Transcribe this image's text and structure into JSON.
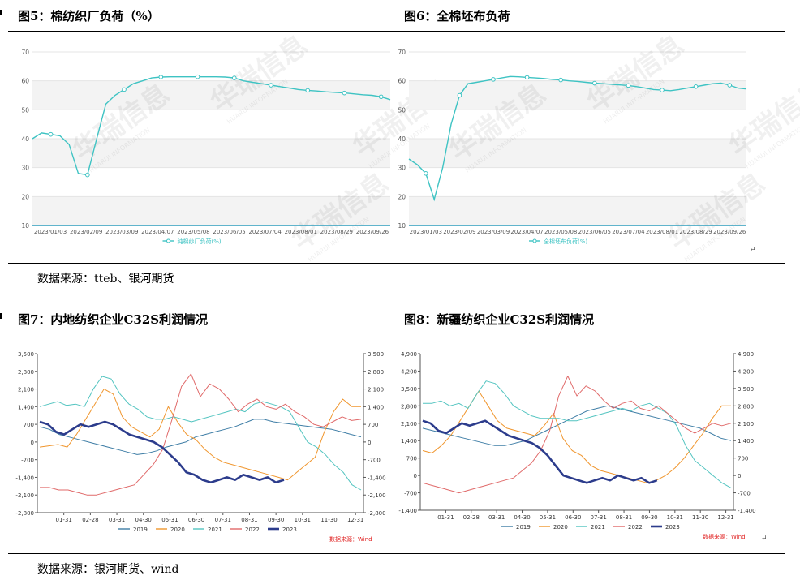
{
  "figures": [
    {
      "title": "图5：棉纺织厂负荷（%）"
    },
    {
      "title": "图6：全棉坯布负荷"
    },
    {
      "title": "图7：内地纺织企业C32S利润情况"
    },
    {
      "title": "图8：新疆纺织企业C32S利润情况"
    }
  ],
  "sources": {
    "top": "数据来源：tteb、银河期货",
    "bottom": "数据来源：银河期货、wind"
  },
  "colors": {
    "teal": "#3ec3c3",
    "blue": "#3f7ea6",
    "orange": "#f0962e",
    "cyan": "#52c4c0",
    "red": "#e06a6a",
    "navy": "#2c3c8c",
    "wind_red": "#e02020"
  },
  "chart_data": [
    {
      "type": "line",
      "title": "",
      "legend": "top",
      "y_ticks": [
        "70",
        "60",
        "50",
        "40",
        "30",
        "20",
        "10"
      ],
      "ylim": [
        10,
        70
      ],
      "x_ticks": [
        "2023/01/03",
        "2023/02/09",
        "2023/03/09",
        "2023/04/07",
        "2023/05/08",
        "2023/06/05",
        "2023/07/04",
        "2023/08/01",
        "2023/08/29",
        "2023/09/26"
      ],
      "series": [
        {
          "name": "纯棉纱厂负荷(%)",
          "values": [
            40,
            42,
            41.5,
            41,
            38,
            28,
            27.5,
            40,
            52,
            55,
            57,
            59,
            60,
            61,
            61.3,
            61.4,
            61.4,
            61.4,
            61.4,
            61.4,
            61.4,
            61.3,
            61,
            60,
            59.5,
            59,
            58.5,
            58,
            57.5,
            57,
            56.7,
            56.5,
            56.2,
            56,
            55.8,
            55.5,
            55.2,
            55,
            54.5,
            53.5
          ]
        }
      ],
      "watermark": "华瑞信息",
      "watermark_sub": "HUARUI INFORMATION"
    },
    {
      "type": "line",
      "title": "",
      "legend": "top",
      "y_ticks": [
        "70",
        "60",
        "50",
        "40",
        "30",
        "20",
        "10"
      ],
      "ylim": [
        10,
        70
      ],
      "x_ticks": [
        "2023/01/03",
        "2023/02/09",
        "2023/03/09",
        "2023/04/07",
        "2023/05/08",
        "2023/06/05",
        "2023/07/04",
        "2023/08/01",
        "2023/08/29",
        "2023/09/26"
      ],
      "series": [
        {
          "name": "全棉坯布负荷(%)",
          "values": [
            33,
            31,
            28,
            19,
            30,
            45,
            55,
            59,
            59.5,
            60,
            60.5,
            61,
            61.5,
            61.4,
            61.2,
            61,
            60.8,
            60.5,
            60.3,
            60,
            59.8,
            59.5,
            59.2,
            59,
            58.8,
            58.6,
            58.4,
            58,
            57.5,
            57,
            56.8,
            56.6,
            57,
            57.5,
            58,
            58.5,
            59,
            59.2,
            58.5,
            57.5,
            57.2
          ]
        }
      ],
      "watermark": "华瑞信息",
      "watermark_sub": "HUARUI INFORMATION"
    },
    {
      "type": "line",
      "title": "",
      "legend": "bottom",
      "y_ticks": [
        "3,500",
        "2,800",
        "2,100",
        "1,400",
        "700",
        "0",
        "-700",
        "-1,400",
        "-2,100",
        "-2,800"
      ],
      "y2_ticks": [
        "3,500",
        "2,800",
        "2,100",
        "1,400",
        "700",
        "0",
        "-700",
        "-1,400",
        "-2,100",
        "-2,800"
      ],
      "ylim": [
        -2800,
        3500
      ],
      "x_ticks": [
        "01-31",
        "02-28",
        "03-31",
        "04-30",
        "05-31",
        "06-30",
        "07-31",
        "08-31",
        "09-30",
        "10-31",
        "11-30",
        "12-31"
      ],
      "note": "数据来源：Wind",
      "series": [
        {
          "name": "2019",
          "values": [
            600,
            500,
            300,
            200,
            100,
            0,
            -100,
            -200,
            -300,
            -400,
            -500,
            -450,
            -350,
            -200,
            -100,
            0,
            200,
            300,
            400,
            500,
            600,
            750,
            900,
            900,
            800,
            750,
            700,
            650,
            600,
            550,
            500,
            400,
            300,
            200
          ]
        },
        {
          "name": "2020",
          "values": [
            -200,
            -150,
            -100,
            -200,
            300,
            900,
            1500,
            2100,
            1900,
            1000,
            600,
            400,
            200,
            500,
            1400,
            800,
            300,
            100,
            -300,
            -600,
            -800,
            -900,
            -1000,
            -1100,
            -1200,
            -1300,
            -1400,
            -1500,
            -1200,
            -900,
            -600,
            400,
            1200,
            1700,
            1400,
            1400
          ]
        },
        {
          "name": "2021",
          "values": [
            1400,
            1500,
            1600,
            1450,
            1500,
            1400,
            2100,
            2600,
            2500,
            1900,
            1500,
            1300,
            1000,
            900,
            900,
            1000,
            900,
            800,
            900,
            1000,
            1100,
            1200,
            1300,
            1200,
            1500,
            1600,
            1500,
            1400,
            1200,
            600,
            0,
            -200,
            -500,
            -900,
            -1200,
            -1700,
            -1900
          ]
        },
        {
          "name": "2022",
          "values": [
            -1800,
            -1800,
            -1900,
            -1900,
            -2000,
            -2100,
            -2100,
            -2000,
            -1900,
            -1800,
            -1700,
            -1300,
            -900,
            -300,
            900,
            2200,
            2700,
            1800,
            2300,
            2100,
            1700,
            1200,
            1500,
            1700,
            1400,
            1300,
            1500,
            1200,
            1000,
            700,
            600,
            800,
            1000,
            850,
            900
          ]
        },
        {
          "name": "2023",
          "values": [
            800,
            700,
            400,
            300,
            500,
            700,
            600,
            700,
            800,
            700,
            500,
            300,
            200,
            100,
            0,
            -200,
            -500,
            -800,
            -1200,
            -1300,
            -1500,
            -1600,
            -1500,
            -1400,
            -1500,
            -1300,
            -1400,
            -1500,
            -1400,
            -1600,
            -1500
          ]
        }
      ]
    },
    {
      "type": "line",
      "title": "",
      "legend": "bottom",
      "y_ticks": [
        "4,900",
        "4,200",
        "3,500",
        "2,800",
        "2,100",
        "1,400",
        "700",
        "0",
        "-700",
        "-1,400"
      ],
      "y2_ticks": [
        "4,900",
        "4,200",
        "3,500",
        "2,800",
        "2,100",
        "1,400",
        "700",
        "0",
        "-700",
        "-1,400"
      ],
      "ylim": [
        -1400,
        4900
      ],
      "x_ticks": [
        "01-31",
        "02-28",
        "03-31",
        "04-30",
        "05-31",
        "06-30",
        "07-31",
        "08-31",
        "09-30",
        "10-31",
        "11-30",
        "12-31"
      ],
      "note": "数据来源：Wind",
      "series": [
        {
          "name": "2019",
          "values": [
            1900,
            1800,
            1700,
            1600,
            1500,
            1400,
            1300,
            1200,
            1200,
            1300,
            1400,
            1600,
            1800,
            2000,
            2200,
            2400,
            2600,
            2700,
            2800,
            2700,
            2600,
            2500,
            2400,
            2300,
            2200,
            2100,
            2000,
            1900,
            1700,
            1500,
            1400
          ]
        },
        {
          "name": "2020",
          "values": [
            1000,
            900,
            1200,
            1600,
            2200,
            2800,
            3400,
            2800,
            2200,
            1900,
            1800,
            1700,
            1600,
            2000,
            2500,
            1500,
            1000,
            800,
            400,
            200,
            100,
            0,
            -100,
            -200,
            -300,
            -200,
            0,
            300,
            700,
            1200,
            1700,
            2300,
            2800,
            2800
          ]
        },
        {
          "name": "2021",
          "values": [
            2900,
            2900,
            3000,
            2800,
            2900,
            2700,
            3300,
            3800,
            3700,
            3300,
            2800,
            2600,
            2400,
            2300,
            2300,
            2300,
            2200,
            2200,
            2300,
            2400,
            2500,
            2600,
            2700,
            2600,
            2800,
            2900,
            2700,
            2500,
            2000,
            1200,
            600,
            300,
            0,
            -300,
            -500
          ]
        },
        {
          "name": "2022",
          "values": [
            -300,
            -400,
            -500,
            -600,
            -700,
            -600,
            -500,
            -400,
            -300,
            -200,
            -100,
            200,
            500,
            1000,
            1800,
            3200,
            4000,
            3200,
            3600,
            3400,
            3000,
            2700,
            2900,
            3000,
            2700,
            2600,
            2800,
            2500,
            2200,
            1900,
            1700,
            1900,
            2100,
            2000,
            2100
          ]
        },
        {
          "name": "2023",
          "values": [
            2200,
            2100,
            1800,
            1700,
            1900,
            2100,
            2000,
            2100,
            2200,
            2000,
            1800,
            1600,
            1500,
            1400,
            1300,
            1100,
            800,
            400,
            0,
            -100,
            -200,
            -300,
            -200,
            -100,
            -200,
            0,
            -100,
            -200,
            -100,
            -300,
            -200
          ]
        }
      ]
    }
  ]
}
